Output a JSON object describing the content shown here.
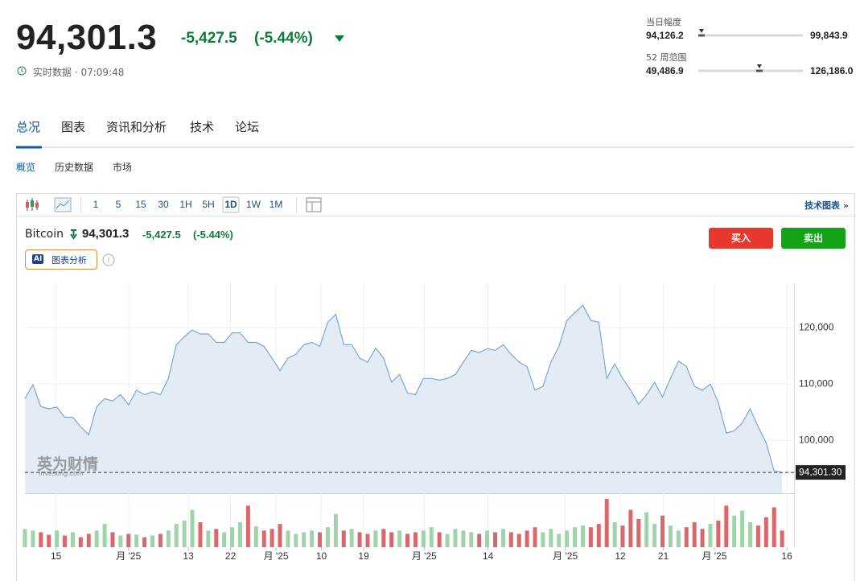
{
  "header": {
    "price": {
      "value": 94301.3,
      "label": "94,301.3"
    },
    "change": "-5,427.5",
    "change_pct": "(-5.44%)",
    "realtime": "实时数据 · 07:09:48",
    "day_range": {
      "label": "当日幅度",
      "low": {
        "value": 94126.2,
        "label": "94,126.2"
      },
      "high": {
        "value": 99843.9,
        "label": "99,843.9"
      }
    },
    "week52_range": {
      "label": "52 周范围",
      "low": {
        "value": 49486.9,
        "label": "49,486.9"
      },
      "high": {
        "value": 126186.0,
        "label": "126,186.0"
      }
    }
  },
  "tabs": [
    "总况",
    "图表",
    "资讯和分析",
    "技术",
    "论坛"
  ],
  "subtabs": [
    "概览",
    "历史数据",
    "市场"
  ],
  "toolbar": {
    "intervals": [
      "1",
      "5",
      "15",
      "30",
      "1H",
      "5H",
      "1D",
      "1W",
      "1M"
    ],
    "active_interval": "1D",
    "tech_chart": "技术图表 »"
  },
  "quote": {
    "price": "94,301.3",
    "change": "-5,427.5",
    "change_pct": "(-5.44%)",
    "buy": "买入",
    "sell": "卖出",
    "ai_badge": "AI",
    "ai_label": "图表分析"
  },
  "watermark": {
    "cn": "英为财情",
    "en": "Investing.com"
  },
  "chart_data": {
    "type": "area",
    "series": [
      {
        "name": "Bitcoin",
        "color": "#7aa7cf",
        "fill": "#e3ecf5",
        "values": [
          107400,
          109900,
          106000,
          105600,
          105900,
          104100,
          104100,
          102400,
          101000,
          106000,
          107400,
          107000,
          108100,
          106300,
          108900,
          108100,
          108600,
          108100,
          111000,
          117000,
          118400,
          119600,
          118900,
          118900,
          117400,
          117400,
          119100,
          119100,
          117400,
          117400,
          116700,
          114600,
          112400,
          114600,
          115300,
          117000,
          117400,
          116700,
          121000,
          122400,
          117000,
          117000,
          114600,
          113900,
          116400,
          114600,
          110300,
          111700,
          108400,
          108100,
          111000,
          111000,
          110700,
          111000,
          111700,
          113900,
          116000,
          115600,
          116300,
          116000,
          117000,
          115300,
          113900,
          113100,
          108900,
          109600,
          113900,
          116700,
          121300,
          122700,
          124000,
          121300,
          121000,
          111000,
          113600,
          111000,
          108900,
          106400,
          108100,
          110300,
          107700,
          111000,
          114100,
          113100,
          109600,
          108900,
          110000,
          106700,
          101300,
          101700,
          103100,
          105600,
          102400,
          99600,
          94600,
          94301.3
        ]
      }
    ],
    "last_value": {
      "value": 94301.3,
      "label": "94,301.30"
    },
    "xlim": [
      0,
      96.5
    ],
    "xticks": [
      {
        "value": 3.9,
        "label": "15"
      },
      {
        "value": 13.0,
        "label": "月 '25"
      },
      {
        "value": 20.5,
        "label": "13"
      },
      {
        "value": 25.8,
        "label": "22"
      },
      {
        "value": 31.5,
        "label": "月 '25"
      },
      {
        "value": 37.2,
        "label": "10"
      },
      {
        "value": 42.5,
        "label": "19"
      },
      {
        "value": 50.1,
        "label": "月 '25"
      },
      {
        "value": 58.1,
        "label": "14"
      },
      {
        "value": 67.8,
        "label": "月 '25"
      },
      {
        "value": 74.7,
        "label": "12"
      },
      {
        "value": 80.1,
        "label": "21"
      },
      {
        "value": 86.5,
        "label": "月 '25"
      },
      {
        "value": 95.6,
        "label": "16"
      }
    ],
    "ylim": [
      90600,
      127900
    ],
    "yticks": [
      {
        "value": 100000,
        "label": "100,000"
      },
      {
        "value": 110000,
        "label": "110,000"
      },
      {
        "value": 120000,
        "label": "120,000"
      }
    ],
    "grid": true,
    "volume": {
      "up_color": "#9fd4a9",
      "down_color": "#d9686c",
      "ylim": [
        0,
        60
      ],
      "values": [
        22,
        20,
        18,
        15,
        20,
        14,
        18,
        12,
        16,
        20,
        28,
        18,
        14,
        16,
        15,
        12,
        14,
        16,
        20,
        28,
        32,
        45,
        30,
        20,
        22,
        18,
        24,
        30,
        50,
        25,
        20,
        22,
        28,
        20,
        16,
        18,
        20,
        18,
        24,
        40,
        20,
        22,
        18,
        16,
        20,
        22,
        18,
        20,
        16,
        18,
        20,
        24,
        18,
        16,
        22,
        20,
        18,
        16,
        20,
        18,
        22,
        18,
        16,
        20,
        24,
        18,
        22,
        16,
        20,
        24,
        26,
        24,
        28,
        58,
        30,
        26,
        45,
        34,
        42,
        28,
        38,
        26,
        20,
        24,
        30,
        22,
        28,
        32,
        50,
        38,
        44,
        30,
        26,
        36,
        48,
        20
      ]
    }
  }
}
